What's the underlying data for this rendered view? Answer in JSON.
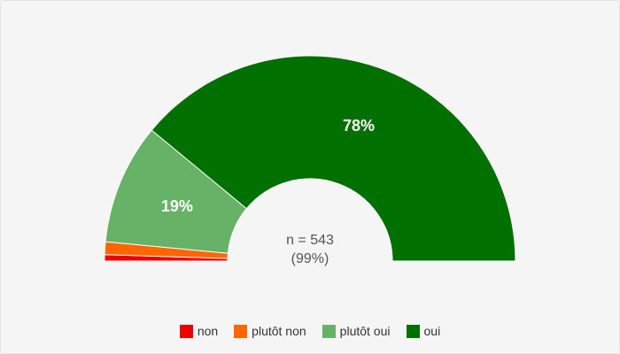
{
  "chart_data": {
    "type": "pie",
    "variant": "semi-donut",
    "categories": [
      "non",
      "plutôt non",
      "plutôt oui",
      "oui"
    ],
    "values": [
      1,
      2,
      19,
      78
    ],
    "unit": "%",
    "colors": [
      "#ee0000",
      "#ff6600",
      "#66b266",
      "#007000"
    ],
    "slice_labels": [
      "",
      "",
      "19%",
      "78%"
    ],
    "center_text": [
      "n = 543",
      "(99%)"
    ],
    "legend_position": "bottom-center"
  },
  "legend": {
    "items": [
      {
        "label": "non",
        "color": "#ee0000"
      },
      {
        "label": "plutôt non",
        "color": "#ff6600"
      },
      {
        "label": "plutôt oui",
        "color": "#66b266"
      },
      {
        "label": "oui",
        "color": "#007000"
      }
    ]
  }
}
